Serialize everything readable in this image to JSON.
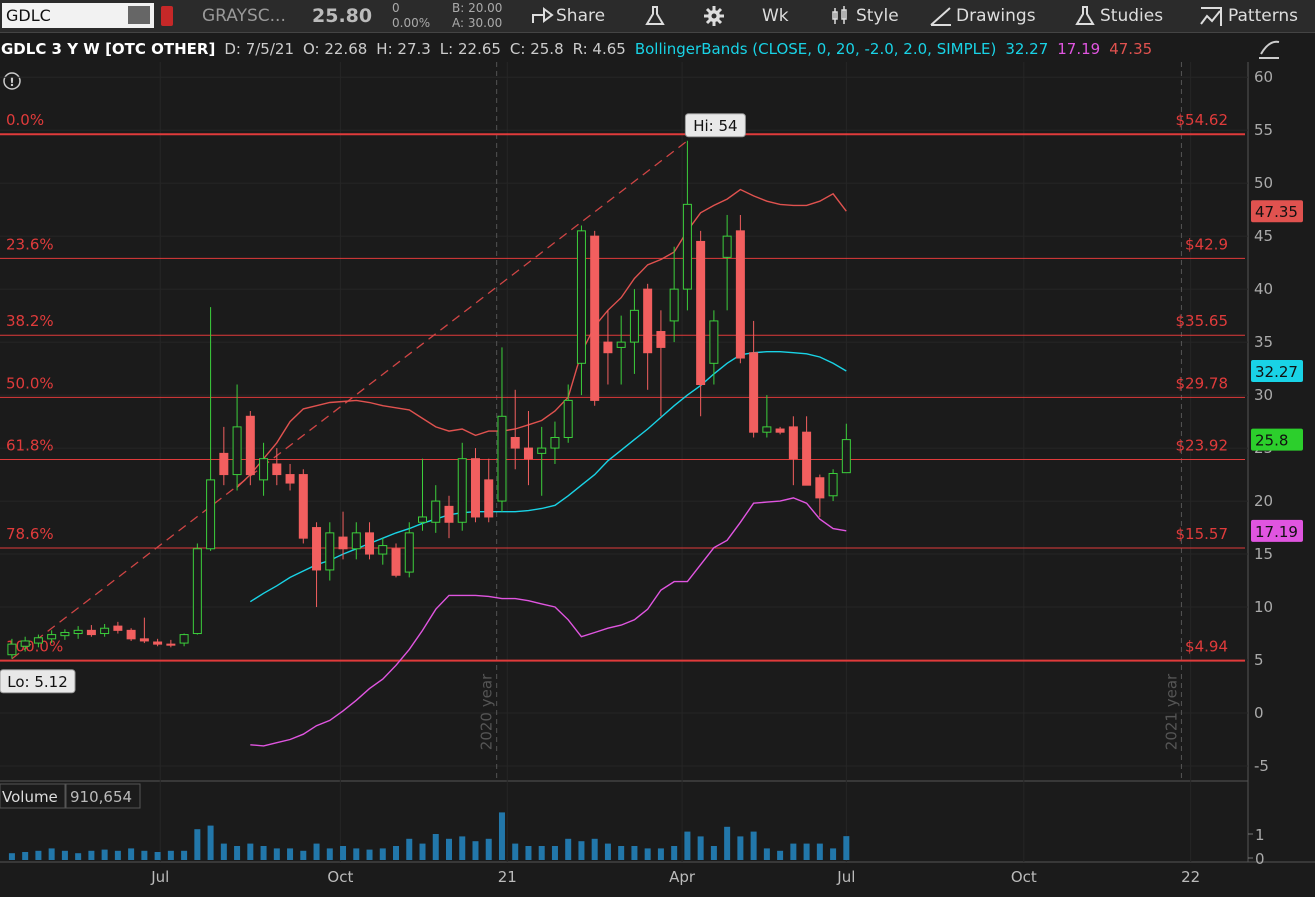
{
  "toolbar": {
    "symbol": "GDLC",
    "name": "GRAYSC...",
    "last": "25.80",
    "change": "0",
    "change_pct": "0.00%",
    "bid": "B: 20.00",
    "ask": "A: 30.00",
    "buttons": [
      "Share",
      "Wk",
      "Style",
      "Drawings",
      "Studies",
      "Patterns"
    ]
  },
  "chart_data": {
    "type": "candlestick",
    "title": "GDLC 3 Y W [OTC OTHER]",
    "info": [
      "D: 7/5/21",
      "O: 22.68",
      "H: 27.3",
      "L: 22.65",
      "C: 25.8",
      "R: 4.65"
    ],
    "study": "BollingerBands (CLOSE, 0, 20, -2.0, 2.0, SIMPLE)",
    "candles": {
      "open": [
        5.5,
        6.3,
        6.6,
        7.0,
        7.3,
        7.5,
        7.8,
        7.5,
        8.2,
        7.8,
        7.0,
        6.7,
        6.5,
        6.6,
        7.5,
        15.5,
        24.5,
        22.5,
        28,
        22,
        23.5,
        22.5,
        22.5,
        17.5,
        13.5,
        16.6,
        15.5,
        17,
        15,
        15.5,
        13.3,
        18,
        18,
        19.5,
        18,
        24,
        22,
        20,
        26,
        25,
        24.5,
        25,
        26,
        33,
        45,
        35,
        34.5,
        35,
        40,
        36,
        37,
        40,
        44.5,
        33,
        43,
        45.5,
        34,
        26.5,
        26.8,
        27,
        26.5,
        22.2,
        20.5,
        22.68
      ],
      "high": [
        7,
        7.2,
        7.4,
        7.8,
        7.9,
        8.2,
        8.3,
        8.4,
        8.6,
        8.0,
        9.0,
        7.0,
        6.9,
        7.5,
        16,
        38.3,
        27,
        31,
        28.5,
        25.5,
        25,
        23.5,
        23,
        18,
        18,
        19,
        18,
        18,
        16.5,
        16,
        18,
        24,
        21.5,
        20.5,
        25.5,
        25,
        24,
        34.5,
        30.5,
        28.5,
        27,
        27.5,
        31,
        46,
        45.5,
        38,
        37.5,
        40,
        40.5,
        38,
        44,
        54,
        45.5,
        38,
        47,
        47,
        37,
        30,
        27,
        28,
        28,
        22.5,
        23,
        27.3
      ],
      "low": [
        5.12,
        5.8,
        6.2,
        6.6,
        6.9,
        7.0,
        7.2,
        7.2,
        7.5,
        6.8,
        6.6,
        6.3,
        6.2,
        6.3,
        7.4,
        15.3,
        21.5,
        21,
        21.5,
        20.5,
        21.5,
        21,
        16,
        10,
        12.5,
        14.5,
        14.5,
        14.5,
        14,
        12.8,
        12.8,
        17.2,
        17,
        16.5,
        17.2,
        18,
        18,
        19,
        23,
        21.5,
        20.5,
        23.5,
        25.5,
        30,
        29,
        31,
        31,
        32,
        30.5,
        28,
        35,
        38,
        28,
        31,
        38,
        33,
        26,
        26,
        26.3,
        21.5,
        21.5,
        18.5,
        20,
        22.65
      ],
      "close": [
        6.5,
        6.8,
        7.1,
        7.4,
        7.6,
        7.8,
        7.4,
        8.0,
        7.8,
        7.0,
        6.8,
        6.5,
        6.4,
        7.4,
        15.5,
        22,
        22.5,
        27,
        22.5,
        24,
        22.5,
        21.7,
        16.5,
        13.5,
        17,
        15.5,
        17,
        15,
        15.8,
        13,
        17,
        18.5,
        20,
        18,
        24,
        18.5,
        18.5,
        28,
        25,
        24,
        25,
        26,
        29.5,
        45.5,
        29.5,
        34,
        35,
        38,
        34,
        34.5,
        40,
        48,
        31,
        37,
        45,
        33.5,
        26.5,
        27,
        26.5,
        24,
        21.5,
        20.3,
        22.6,
        25.8
      ],
      "up_color": "#3ccf3c",
      "down_color": "#f25f5f"
    },
    "bands": [
      {
        "color": "#19d3e6",
        "values": [
          null,
          null,
          null,
          null,
          null,
          null,
          null,
          null,
          null,
          null,
          null,
          null,
          null,
          null,
          null,
          null,
          null,
          null,
          10.5,
          11.3,
          12.0,
          12.8,
          13.4,
          14.0,
          14.4,
          15.0,
          15.5,
          16.0,
          16.5,
          17.0,
          17.4,
          17.9,
          18.3,
          18.7,
          18.9,
          19.0,
          19.0,
          19.0,
          19.0,
          19.1,
          19.3,
          19.6,
          20.5,
          21.5,
          22.5,
          23.8,
          24.8,
          25.8,
          26.8,
          27.9,
          29.0,
          30.0,
          30.9,
          32.0,
          33.0,
          33.8,
          34.0,
          34.1,
          34.1,
          34.0,
          33.9,
          33.6,
          33.0,
          32.27
        ]
      },
      {
        "color": "#e055e0",
        "values": [
          null,
          null,
          null,
          null,
          null,
          null,
          null,
          null,
          null,
          null,
          null,
          null,
          null,
          null,
          null,
          null,
          null,
          null,
          -3.0,
          -3.1,
          -2.8,
          -2.5,
          -2.0,
          -1.2,
          -0.7,
          0.2,
          1.2,
          2.3,
          3.2,
          4.5,
          6.0,
          7.8,
          9.8,
          11.1,
          11.1,
          11.1,
          11.0,
          10.8,
          10.8,
          10.6,
          10.3,
          10.0,
          8.8,
          7.2,
          7.6,
          8.0,
          8.3,
          8.8,
          9.8,
          11.6,
          12.4,
          12.4,
          14.0,
          15.6,
          16.3,
          18.0,
          19.8,
          19.9,
          20.0,
          20.3,
          19.8,
          18.3,
          17.4,
          17.19
        ]
      },
      {
        "color": "#e0524f",
        "values": [
          null,
          null,
          null,
          null,
          null,
          null,
          null,
          null,
          null,
          null,
          null,
          null,
          null,
          null,
          null,
          null,
          null,
          21.3,
          22.5,
          24.0,
          25.5,
          27.5,
          28.7,
          29.0,
          29.3,
          29.4,
          29.5,
          29.3,
          29.0,
          28.8,
          28.6,
          27.8,
          27.0,
          26.6,
          26.8,
          26.2,
          26.6,
          26.6,
          26.8,
          27.2,
          27.6,
          28.5,
          29.8,
          34.0,
          36.5,
          38.0,
          39.2,
          41.0,
          42.3,
          42.8,
          43.5,
          45.5,
          47.2,
          47.9,
          48.5,
          49.4,
          48.8,
          48.3,
          48.0,
          47.9,
          47.9,
          48.3,
          49.0,
          47.35
        ]
      }
    ],
    "fib_color": "#e03b3b",
    "fib_levels": [
      {
        "label": "0.0%",
        "value": 54.62,
        "value_label": "$54.62"
      },
      {
        "label": "23.6%",
        "value": 42.9,
        "value_label": "$42.9"
      },
      {
        "label": "38.2%",
        "value": 35.65,
        "value_label": "$35.65"
      },
      {
        "label": "50.0%",
        "value": 29.78,
        "value_label": "$29.78"
      },
      {
        "label": "61.8%",
        "value": 23.92,
        "value_label": "$23.92"
      },
      {
        "label": "78.6%",
        "value": 15.57,
        "value_label": "$15.57"
      },
      {
        "label": "100.0%",
        "value": 4.94,
        "value_label": "$4.94"
      }
    ],
    "hi_label": "Hi: 54",
    "hi_index": 51,
    "lo_label": "Lo: 5.12",
    "lo_index": 0,
    "year_markers": [
      {
        "value": 36.6,
        "label": "2020 year"
      },
      {
        "value": 88.3,
        "label": "2021 year"
      }
    ],
    "xlim": [
      -0.9,
      93.1
    ],
    "xticks": [
      {
        "value": 11.2,
        "label": "Jul"
      },
      {
        "value": 24.8,
        "label": "Oct"
      },
      {
        "value": 37.4,
        "label": "21"
      },
      {
        "value": 50.6,
        "label": "Apr"
      },
      {
        "value": 63,
        "label": "Jul"
      },
      {
        "value": 76.4,
        "label": "Oct"
      },
      {
        "value": 89,
        "label": "22"
      }
    ],
    "ylim": [
      -5.85,
      62
    ],
    "yticks": [
      -5,
      0,
      5,
      10,
      15,
      20,
      25,
      30,
      35,
      40,
      45,
      50,
      55,
      60
    ],
    "grid": true,
    "volume": {
      "label": "Volume",
      "value_label": "910,654",
      "color": "#2277aa",
      "ylim": [
        0,
        3000000
      ],
      "yticks": [
        0,
        {
          "value": 1000000,
          "label": "1"
        }
      ],
      "values": [
        200000,
        250000,
        300000,
        400000,
        300000,
        200000,
        300000,
        350000,
        300000,
        400000,
        300000,
        250000,
        300000,
        300000,
        1200000,
        1350000,
        600000,
        500000,
        600000,
        500000,
        400000,
        400000,
        300000,
        600000,
        400000,
        500000,
        400000,
        350000,
        400000,
        500000,
        800000,
        600000,
        1000000,
        800000,
        900000,
        700000,
        800000,
        1900000,
        600000,
        500000,
        500000,
        500000,
        800000,
        700000,
        800000,
        600000,
        500000,
        500000,
        400000,
        400000,
        500000,
        1100000,
        900000,
        500000,
        1300000,
        900000,
        1100000,
        400000,
        300000,
        600000,
        600000,
        600000,
        400000,
        910654
      ]
    }
  }
}
